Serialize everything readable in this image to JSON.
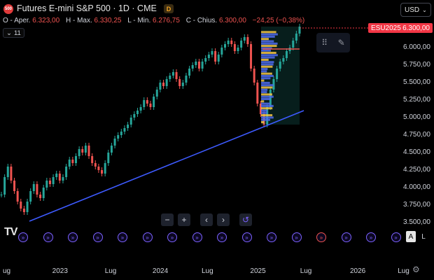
{
  "header": {
    "logo_text": "500",
    "title": "Futures E-mini S&P 500 · 1D · CME",
    "badge": "D",
    "ohlc": [
      {
        "key": "O - Aper.",
        "value": "6.323,00"
      },
      {
        "key": "H - Max.",
        "value": "6.330,25"
      },
      {
        "key": "L - Min.",
        "value": "6.276,75"
      },
      {
        "key": "C - Chius.",
        "value": "6.300,00"
      },
      {
        "key": "",
        "value": "−24,25 (−0,38%)"
      }
    ],
    "indicators_label": "11",
    "currency": "USD"
  },
  "price_tag": {
    "symbol": "ESU2025",
    "value": "6.300,00"
  },
  "price_axis": [
    {
      "label": "6.000,00",
      "price": 6000
    },
    {
      "label": "5.750,00",
      "price": 5750
    },
    {
      "label": "5.500,00",
      "price": 5500
    },
    {
      "label": "5.250,00",
      "price": 5250
    },
    {
      "label": "5.000,00",
      "price": 5000
    },
    {
      "label": "4.750,00",
      "price": 4750
    },
    {
      "label": "4.500,00",
      "price": 4500
    },
    {
      "label": "4.250,00",
      "price": 4250
    },
    {
      "label": "4.000,00",
      "price": 4000
    },
    {
      "label": "3.750,00",
      "price": 3750
    },
    {
      "label": "3.500,00",
      "price": 3500
    }
  ],
  "time_axis": [
    {
      "label": "ug",
      "pos": 0.0
    },
    {
      "label": "2023",
      "pos": 0.114
    },
    {
      "label": "Lug",
      "pos": 0.235
    },
    {
      "label": "2024",
      "pos": 0.345
    },
    {
      "label": "Lug",
      "pos": 0.458
    },
    {
      "label": "2025",
      "pos": 0.57
    },
    {
      "label": "Lug",
      "pos": 0.685
    },
    {
      "label": "2026",
      "pos": 0.8
    },
    {
      "label": "Lug",
      "pos": 0.91
    }
  ],
  "zoom_controls": [
    "−",
    "+",
    "‹",
    "›",
    "↺"
  ],
  "tv_logo": "TV",
  "scale_buttons": {
    "auto": "A",
    "log": "L"
  },
  "colors": {
    "up": "#26a69a",
    "down": "#ef5350",
    "trendline": "#3d5afe",
    "accent": "#2962ff"
  },
  "series": [
    3900,
    4150,
    4300,
    4100,
    3950,
    3800,
    3700,
    3650,
    3800,
    3950,
    4050,
    3900,
    3850,
    4000,
    4100,
    4050,
    4150,
    4200,
    4100,
    4150,
    4300,
    4400,
    4350,
    4450,
    4550,
    4500,
    4600,
    4450,
    4350,
    4300,
    4250,
    4200,
    4350,
    4500,
    4600,
    4700,
    4750,
    4800,
    4850,
    4900,
    5000,
    5050,
    5100,
    5150,
    5250,
    5200,
    5150,
    5300,
    5400,
    5500,
    5450,
    5550,
    5600,
    5650,
    5550,
    5450,
    5500,
    5600,
    5700,
    5750,
    5800,
    5700,
    5800,
    5850,
    5900,
    5950,
    5800,
    5900,
    6000,
    6050,
    6100,
    6050,
    5950,
    6000,
    6100,
    6150,
    6050,
    5700,
    5500,
    5200,
    5050,
    4900,
    5150,
    5400,
    5550,
    5700,
    5800,
    5850,
    5950,
    6000,
    6100,
    6200,
    6300
  ],
  "events_count": 16
}
